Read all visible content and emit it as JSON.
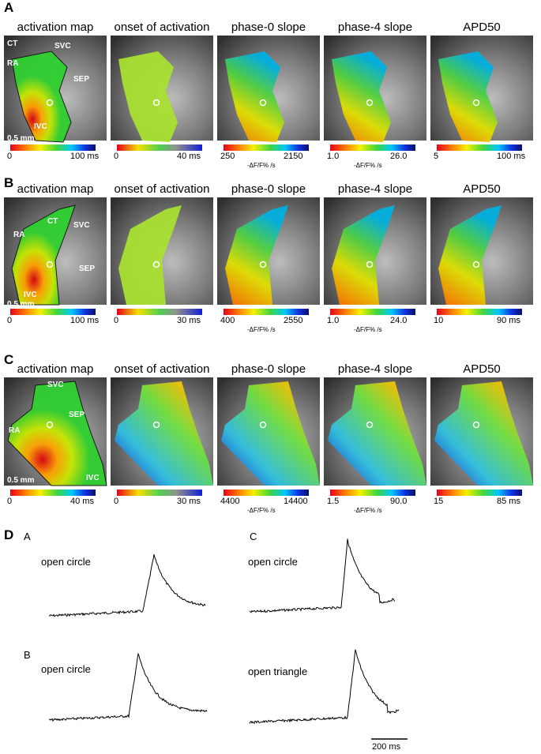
{
  "panels": [
    {
      "label": "A",
      "maps": [
        {
          "title": "activation map",
          "annotations": [
            "CT",
            "RA",
            "SVC",
            "SEP",
            "IVC",
            "0.5 mm"
          ],
          "colorbar": {
            "min": "0",
            "max": "100 ms"
          }
        },
        {
          "title": "onset of activation",
          "colorbar": {
            "min": "0",
            "max": "40 ms"
          }
        },
        {
          "title": "phase-0 slope",
          "colorbar": {
            "min": "250",
            "max": "2150",
            "units": "-ΔF/F% /s"
          }
        },
        {
          "title": "phase-4 slope",
          "colorbar": {
            "min": "1.0",
            "max": "26.0",
            "units": "-ΔF/F% /s"
          }
        },
        {
          "title": "APD50",
          "colorbar": {
            "min": "5",
            "max": "100 ms"
          }
        }
      ]
    },
    {
      "label": "B",
      "maps": [
        {
          "title": "activation map",
          "annotations": [
            "CT",
            "RA",
            "SVC",
            "SEP",
            "IVC",
            "0.5 mm"
          ],
          "colorbar": {
            "min": "0",
            "max": "100 ms"
          }
        },
        {
          "title": "onset of activation",
          "colorbar": {
            "min": "0",
            "max": "30 ms"
          }
        },
        {
          "title": "phase-0 slope",
          "colorbar": {
            "min": "400",
            "max": "2550",
            "units": "-ΔF/F% /s"
          }
        },
        {
          "title": "phase-4 slope",
          "colorbar": {
            "min": "1.0",
            "max": "24.0",
            "units": "-ΔF/F% /s"
          }
        },
        {
          "title": "APD50",
          "colorbar": {
            "min": "10",
            "max": "90 ms"
          }
        }
      ]
    },
    {
      "label": "C",
      "maps": [
        {
          "title": "activation map",
          "annotations": [
            "SVC",
            "SEP",
            "RA",
            "IVC",
            "0.5 mm"
          ],
          "colorbar": {
            "min": "0",
            "max": "40 ms"
          }
        },
        {
          "title": "onset of activation",
          "colorbar": {
            "min": "0",
            "max": "30 ms"
          }
        },
        {
          "title": "phase-0 slope",
          "colorbar": {
            "min": "4400",
            "max": "14400",
            "units": "-ΔF/F% /s"
          }
        },
        {
          "title": "phase-4 slope",
          "colorbar": {
            "min": "1.5",
            "max": "90.0",
            "units": "-ΔF/F% /s"
          }
        },
        {
          "title": "APD50",
          "colorbar": {
            "min": "15",
            "max": "85 ms"
          }
        }
      ]
    }
  ],
  "traces": {
    "label": "D",
    "columns": [
      {
        "label": "A",
        "traces": [
          "open circle"
        ]
      },
      {
        "label": "B",
        "traces": [
          "open circle"
        ]
      },
      {
        "label": "C",
        "traces": [
          "open circle",
          "open triangle"
        ]
      }
    ],
    "scale_bar": "200 ms"
  }
}
